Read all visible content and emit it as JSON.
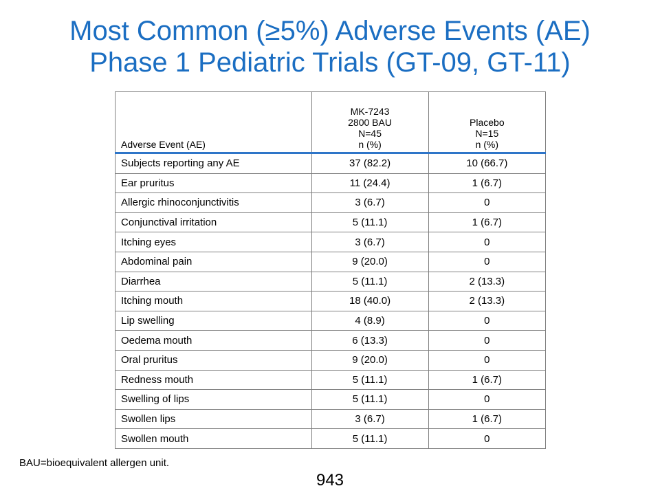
{
  "title": {
    "line1": "Most Common (≥5%) Adverse Events (AE)",
    "line2": "Phase 1 Pediatric Trials (GT-09, GT-11)"
  },
  "colors": {
    "title": "#1b6ec2",
    "header_rule": "#2e75c8",
    "grid": "#7f7f7f"
  },
  "table": {
    "header": {
      "ae": "Adverse Event (AE)",
      "drug": [
        "MK-7243",
        "2800 BAU",
        "N=45",
        "n (%)"
      ],
      "placebo": [
        "Placebo",
        "N=15",
        "n (%)"
      ]
    },
    "rows": [
      {
        "ae": "Subjects reporting any AE",
        "drug": "37 (82.2)",
        "placebo": "10 (66.7)"
      },
      {
        "ae": "Ear pruritus",
        "drug": "11 (24.4)",
        "placebo": "1 (6.7)"
      },
      {
        "ae": "Allergic rhinoconjunctivitis",
        "drug": "3 (6.7)",
        "placebo": "0"
      },
      {
        "ae": "Conjunctival irritation",
        "drug": "5 (11.1)",
        "placebo": "1 (6.7)"
      },
      {
        "ae": "Itching eyes",
        "drug": "3 (6.7)",
        "placebo": "0"
      },
      {
        "ae": "Abdominal pain",
        "drug": "9 (20.0)",
        "placebo": "0"
      },
      {
        "ae": "Diarrhea",
        "drug": "5 (11.1)",
        "placebo": "2 (13.3)"
      },
      {
        "ae": "Itching mouth",
        "drug": "18 (40.0)",
        "placebo": "2 (13.3)"
      },
      {
        "ae": "Lip swelling",
        "drug": "4 (8.9)",
        "placebo": "0"
      },
      {
        "ae": "Oedema mouth",
        "drug": "6 (13.3)",
        "placebo": "0"
      },
      {
        "ae": "Oral pruritus",
        "drug": "9 (20.0)",
        "placebo": "0"
      },
      {
        "ae": "Redness mouth",
        "drug": "5 (11.1)",
        "placebo": "1 (6.7)"
      },
      {
        "ae": "Swelling of lips",
        "drug": "5 (11.1)",
        "placebo": "0"
      },
      {
        "ae": "Swollen lips",
        "drug": "3 (6.7)",
        "placebo": "1 (6.7)"
      },
      {
        "ae": "Swollen mouth",
        "drug": "5 (11.1)",
        "placebo": "0"
      }
    ]
  },
  "footnote": "BAU=bioequivalent allergen unit.",
  "page_number": "943"
}
